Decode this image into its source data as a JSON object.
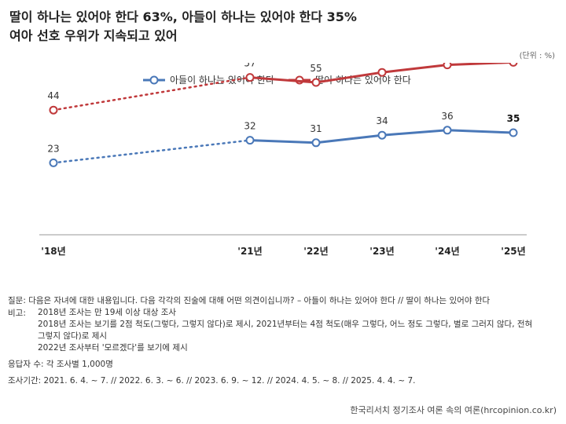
{
  "title": {
    "line1": "딸이 하나는 있어야 한다 63%, 아들이 하나는 있어야 한다 35%",
    "line2": "여아 선호 우위가 지속되고 있어"
  },
  "unit": "(단위 : %)",
  "colors": {
    "blue": "#4a78b8",
    "red": "#c0393b"
  },
  "chart_data": {
    "type": "line",
    "categories": [
      "'18년",
      "'21년",
      "'22년",
      "'23년",
      "'24년",
      "'25년"
    ],
    "series": [
      {
        "name": "아들이 하나는 있어야 한다",
        "color": "#4a78b8",
        "values": [
          23,
          32,
          31,
          34,
          36,
          35
        ]
      },
      {
        "name": "딸이 하나는 있어야 한다",
        "color": "#c0393b",
        "values": [
          44,
          57,
          55,
          59,
          62,
          63
        ]
      }
    ],
    "dotted_first_segment": true,
    "legend_position": "top-center",
    "grid": false
  },
  "notes": {
    "question": "질문: 다음은 자녀에 대한 내용입니다. 다음 각각의 진술에 대해 어떤 의견이십니까? – 아들이 하나는 있어야 한다 // 딸이 하나는 있어야 한다",
    "remarks_label": "비고:",
    "remarks": [
      "2018년 조사는 만 19세 이상 대상 조사",
      "2018년 조사는 보기를 2점 척도(그렇다, 그렇지 않다)로 제시, 2021년부터는 4점 척도(매우 그렇다, 어느 정도 그렇다, 별로 그러지 않다, 전혀",
      "그렇지 않다)로 제시",
      "2022년 조사부터 '모르겠다'를 보기에 제시"
    ],
    "respondents": "응답자 수: 각 조사별 1,000명",
    "period": "조사기간: 2021. 6. 4. ~ 7. // 2022. 6. 3. ~ 6. // 2023. 6. 9. ~ 12. // 2024. 4. 5. ~ 8. // 2025. 4. 4. ~ 7."
  },
  "source": "한국리서치 정기조사 여론 속의 여론(hrcopinion.co.kr)"
}
